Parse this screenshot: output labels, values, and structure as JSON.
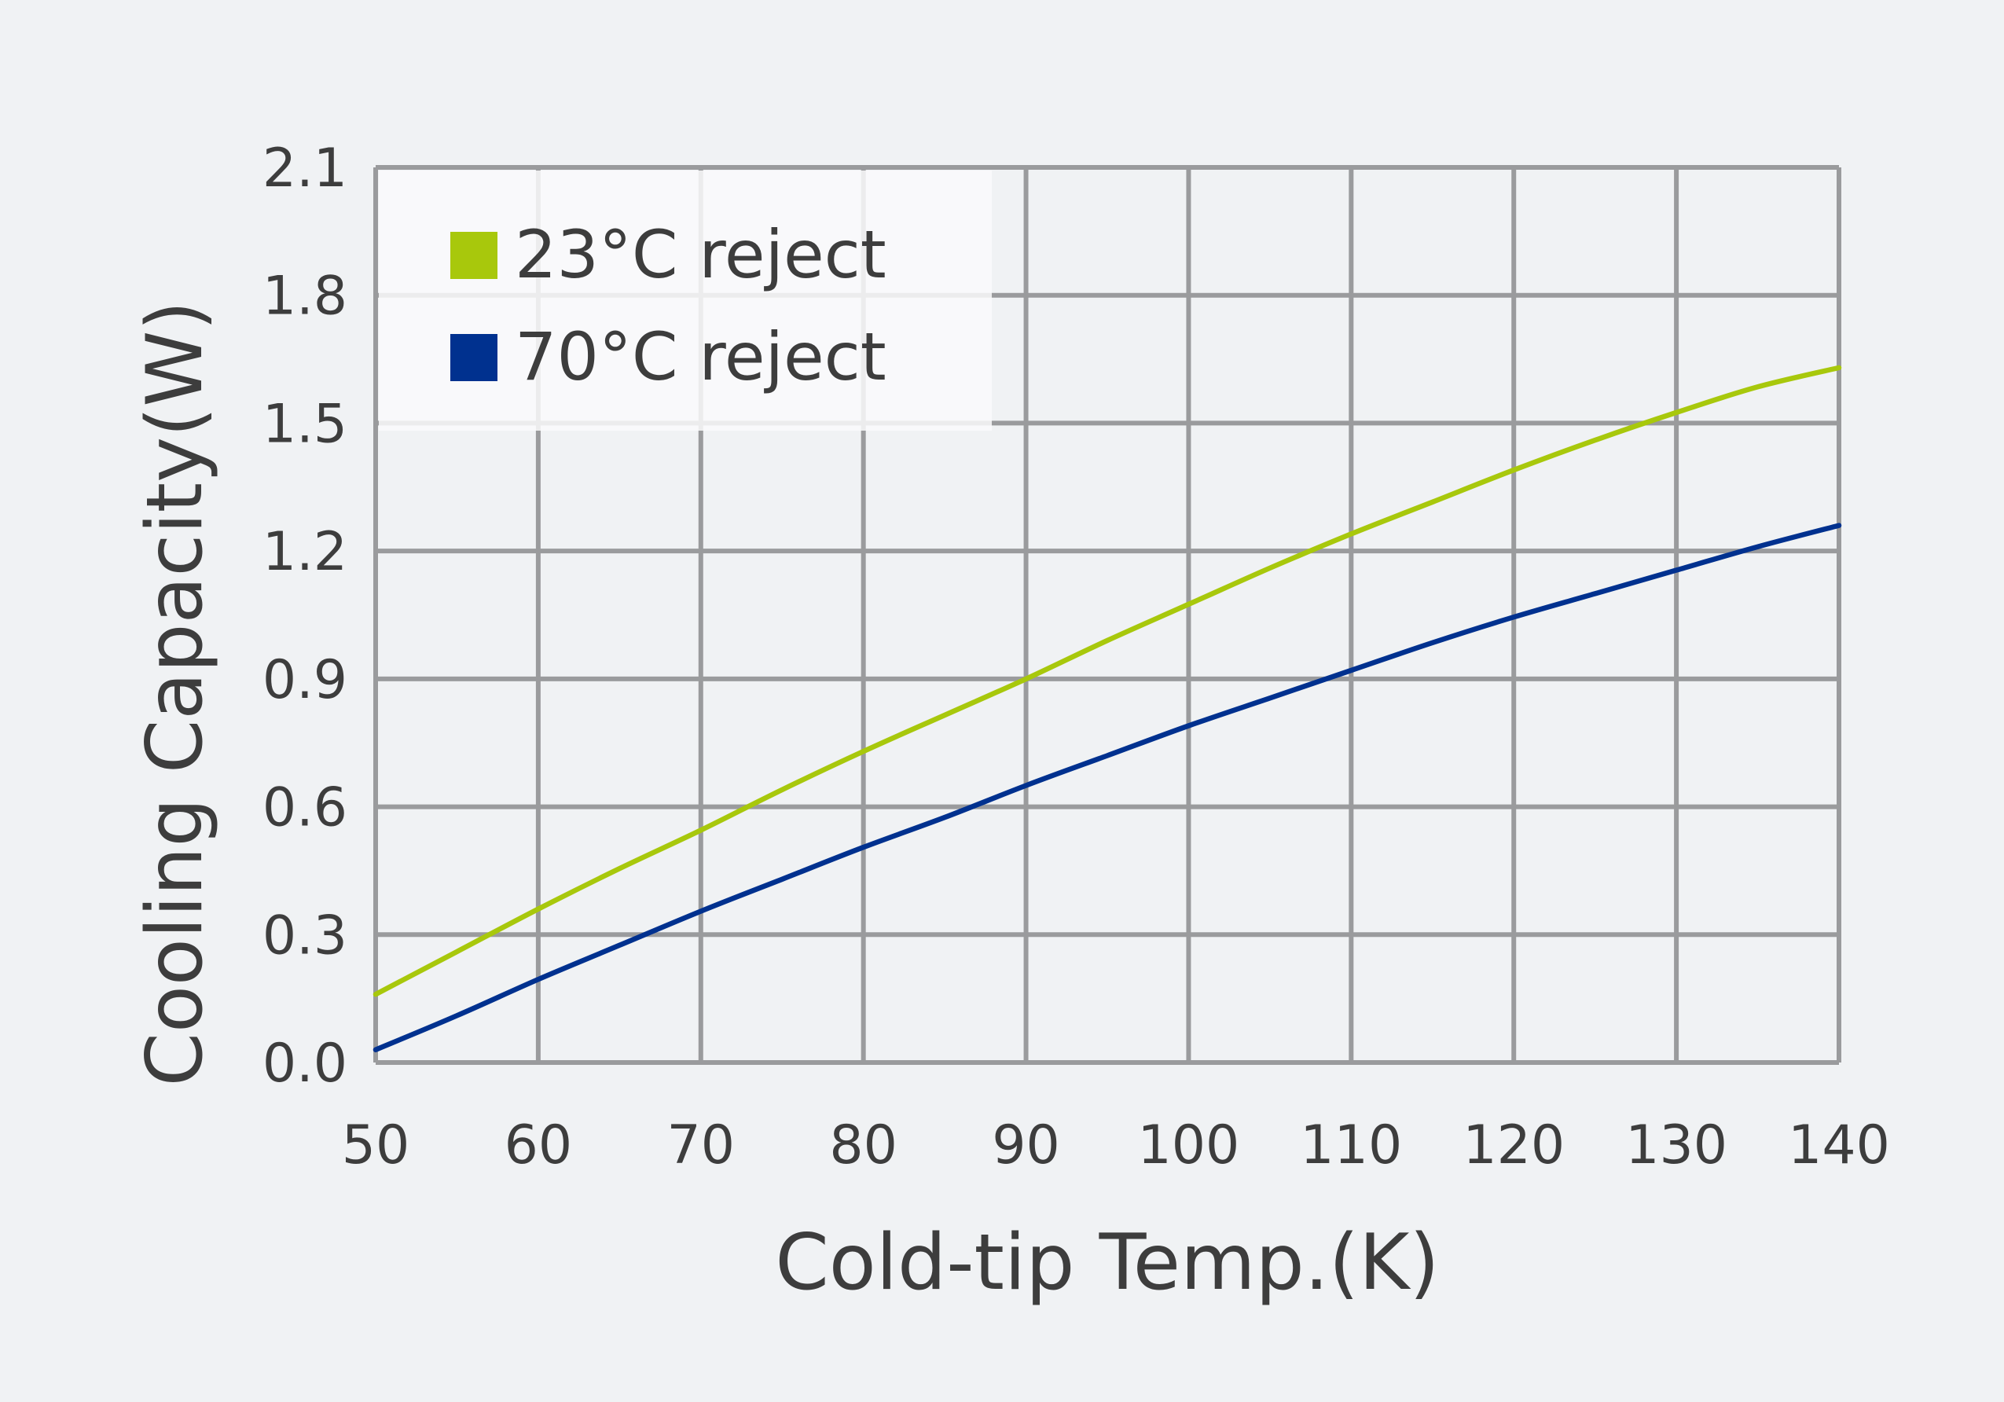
{
  "colors": {
    "background": "#f0f2f4",
    "grid": "#9a9b9d",
    "text": "#3d3d3d",
    "legend_bg": "#fafafb"
  },
  "chart_data": {
    "type": "line",
    "title": "",
    "xlabel": "Cold-tip Temp.(K)",
    "ylabel": "Cooling Capacity(W)",
    "xlim": [
      50,
      140
    ],
    "ylim": [
      0.0,
      2.1
    ],
    "xticks": [
      50,
      60,
      70,
      80,
      90,
      100,
      110,
      120,
      130,
      140
    ],
    "xtick_labels": [
      "50",
      "60",
      "70",
      "80",
      "90",
      "100",
      "110",
      "120",
      "130",
      "140"
    ],
    "yticks": [
      0.0,
      0.3,
      0.6,
      0.9,
      1.2,
      1.5,
      1.8,
      2.1
    ],
    "ytick_labels": [
      "0.0",
      "0.3",
      "0.6",
      "0.9",
      "1.2",
      "1.5",
      "1.8",
      "2.1"
    ],
    "grid": true,
    "legend_position": "top-left",
    "series": [
      {
        "name": "23°C reject",
        "color": "#a8c80c",
        "x": [
          50,
          55,
          60,
          65,
          70,
          75,
          80,
          85,
          90,
          95,
          100,
          105,
          110,
          115,
          120,
          125,
          130,
          135,
          140
        ],
        "y": [
          0.16,
          0.26,
          0.36,
          0.455,
          0.545,
          0.64,
          0.73,
          0.815,
          0.9,
          0.99,
          1.075,
          1.16,
          1.24,
          1.315,
          1.39,
          1.46,
          1.525,
          1.585,
          1.63
        ]
      },
      {
        "name": "70°C reject",
        "color": "#00318f",
        "x": [
          50,
          55,
          60,
          65,
          70,
          75,
          80,
          85,
          90,
          95,
          100,
          105,
          110,
          115,
          120,
          125,
          130,
          135,
          140
        ],
        "y": [
          0.03,
          0.11,
          0.195,
          0.275,
          0.355,
          0.43,
          0.505,
          0.575,
          0.65,
          0.72,
          0.79,
          0.855,
          0.92,
          0.985,
          1.045,
          1.1,
          1.155,
          1.21,
          1.26
        ]
      }
    ]
  }
}
